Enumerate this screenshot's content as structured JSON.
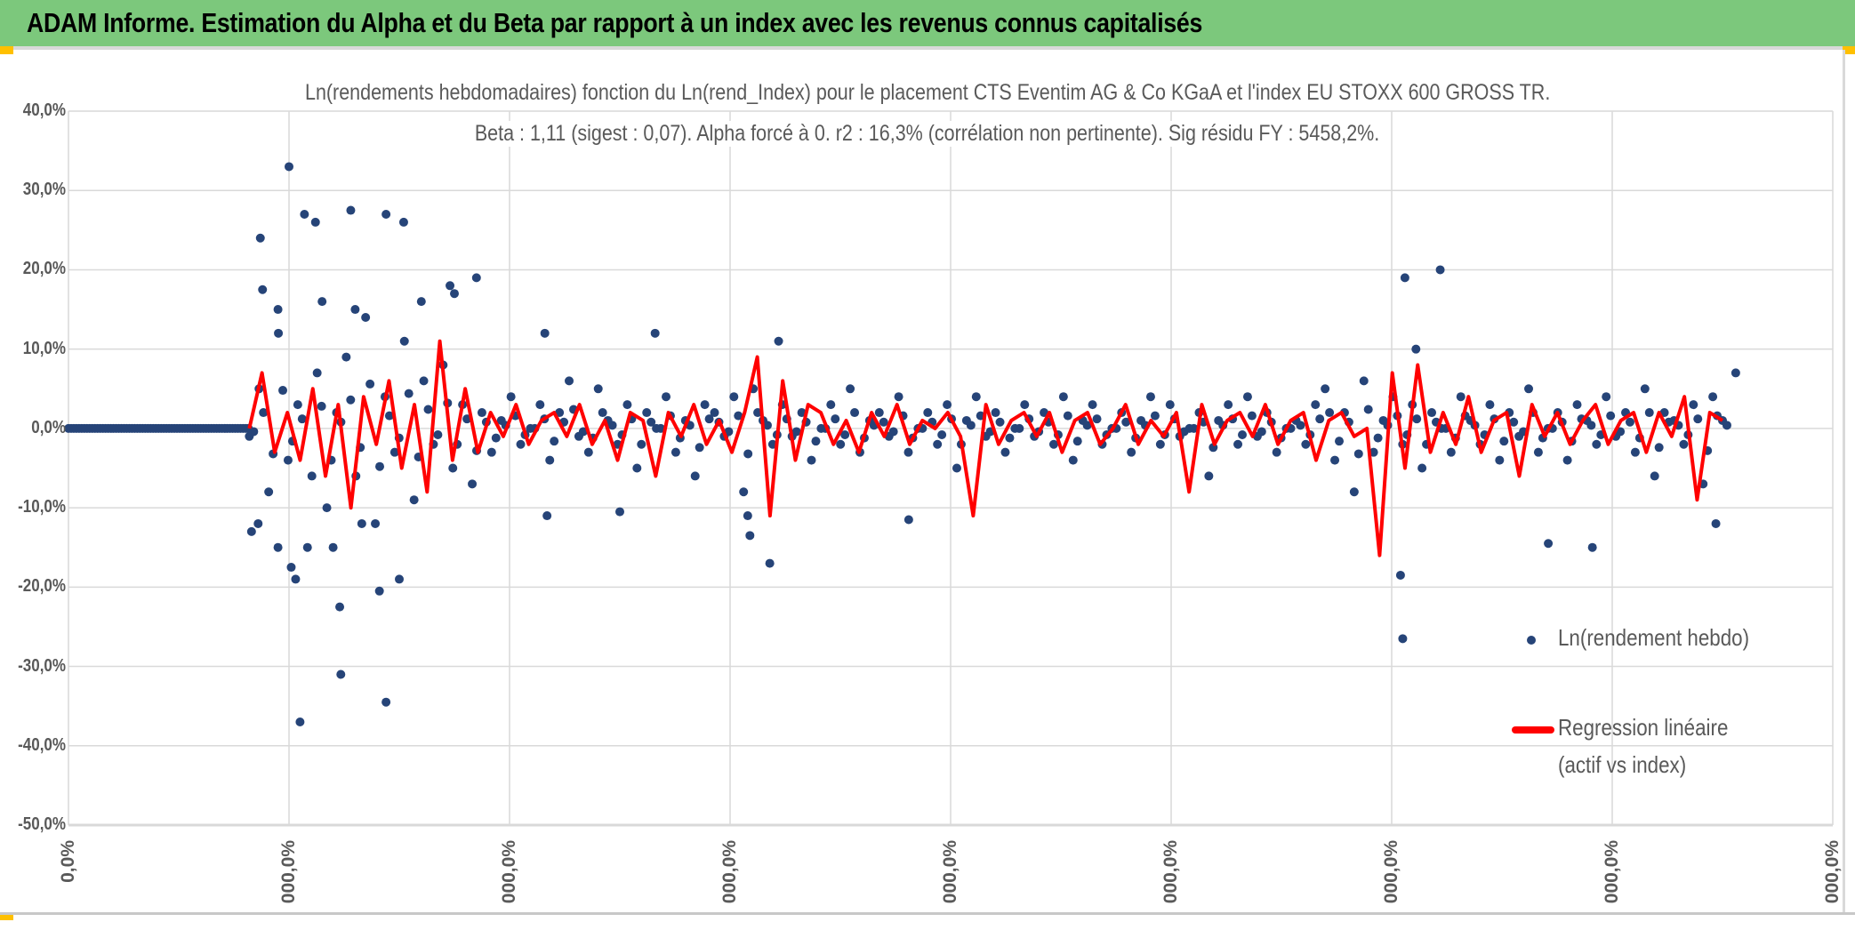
{
  "header": {
    "title": "ADAM Informe. Estimation du Alpha et du Beta par rapport à un index avec les revenus connus capitalisés"
  },
  "chart_data": {
    "type": "scatter",
    "title": "Ln(rendements hebdomadaires) fonction du Ln(rend_Index) pour le placement CTS Eventim AG & Co KGaA et l'index EU STOXX 600 GROSS TR.",
    "subtitle": "Beta : 1,11 (sigest : 0,07). Alpha forcé à 0. r2 : 16,3% (corrélation non pertinente). Sig résidu FY : 5458,2%.",
    "ylim": [
      -50,
      40
    ],
    "yticks": [
      "40,0%",
      "30,0%",
      "20,0%",
      "10,0%",
      "0,0%",
      "-10,0%",
      "-20,0%",
      "-30,0%",
      "-40,0%",
      "-50,0%"
    ],
    "xlim": [
      0,
      8
    ],
    "xticks": [
      "0,0%",
      "000,0%",
      "000,0%",
      "000,0%",
      "000,0%",
      "000,0%",
      "000,0%",
      "000,0%",
      "000,0%"
    ],
    "grid": true,
    "legend_position": "right",
    "colors": {
      "scatter": "#264478",
      "regression": "#FF0000",
      "grid": "#d9d9d9"
    },
    "series": [
      {
        "name": "Ln(rendement hebdo)",
        "kind": "points",
        "zero_segment": [
          0,
          0.82
        ],
        "dense_x_range": [
          0.82,
          7.5
        ],
        "dense_y": [
          -1,
          5,
          -8,
          12,
          -4,
          3,
          -15,
          7,
          -10,
          2,
          9,
          -6,
          14,
          -12,
          4,
          -3,
          11,
          -9,
          6,
          -2,
          8,
          -5,
          3,
          -7,
          2,
          -3,
          1,
          4,
          -2,
          0,
          3,
          -4,
          2,
          6,
          -1,
          -3,
          5,
          1,
          -2,
          3,
          -5,
          2,
          0,
          4,
          -3,
          1,
          -6,
          3,
          2,
          -1,
          4,
          -8,
          5,
          1,
          -2,
          3,
          -1,
          2,
          -4,
          0,
          3,
          -2,
          5,
          -3,
          1,
          2,
          -1,
          4,
          -3,
          0,
          2,
          -2,
          3,
          -5,
          1,
          4,
          -1,
          2,
          -3,
          0,
          3,
          -1,
          2,
          -2,
          4,
          -4,
          1,
          3,
          -2,
          0,
          2,
          -3,
          1,
          4,
          -2,
          3,
          -1,
          0,
          2,
          -6,
          1,
          3,
          -2,
          4,
          -1,
          2,
          -3,
          0,
          1,
          -2,
          3,
          5,
          -4,
          2,
          -8,
          6,
          -3,
          1,
          4,
          -2,
          3,
          -5,
          2,
          0,
          -3,
          4,
          1,
          -2,
          3,
          -4,
          2,
          -1,
          5,
          -3,
          0,
          2,
          -4,
          3,
          1,
          -2,
          4,
          -1,
          2,
          -3,
          5,
          -6,
          2,
          1,
          -2,
          3,
          -7,
          4,
          1
        ],
        "outliers": [
          [
            1.0,
            33
          ],
          [
            1.07,
            27
          ],
          [
            1.12,
            26
          ],
          [
            1.28,
            27.5
          ],
          [
            1.44,
            27
          ],
          [
            1.52,
            26
          ],
          [
            0.87,
            24
          ],
          [
            0.88,
            17.5
          ],
          [
            0.95,
            15
          ],
          [
            1.85,
            19
          ],
          [
            1.73,
            18
          ],
          [
            1.75,
            17
          ],
          [
            6.06,
            19
          ],
          [
            6.22,
            20
          ],
          [
            1.05,
            -37
          ],
          [
            1.44,
            -34.5
          ],
          [
            1.235,
            -31
          ],
          [
            1.23,
            -22.5
          ],
          [
            1.41,
            -20.5
          ],
          [
            1.03,
            -19
          ],
          [
            1.01,
            -17.5
          ],
          [
            1.5,
            -19
          ],
          [
            0.83,
            -13
          ],
          [
            0.86,
            -12
          ],
          [
            6.05,
            -26.5
          ],
          [
            6.04,
            -18.5
          ],
          [
            6.71,
            -14.5
          ],
          [
            6.91,
            -15
          ],
          [
            7.47,
            -12
          ],
          [
            3.18,
            -17
          ],
          [
            3.09,
            -13.5
          ],
          [
            3.08,
            -11
          ],
          [
            2.17,
            -11
          ],
          [
            2.5,
            -10.5
          ],
          [
            3.81,
            -11.5
          ],
          [
            2.66,
            12
          ],
          [
            2.16,
            12
          ],
          [
            3.22,
            11
          ],
          [
            6.11,
            10
          ],
          [
            7.56,
            7
          ],
          [
            1.15,
            16
          ],
          [
            1.3,
            15
          ],
          [
            1.6,
            16
          ],
          [
            0.95,
            -15
          ],
          [
            1.2,
            -15
          ],
          [
            1.33,
            -12
          ]
        ]
      },
      {
        "name": "Regression linéaire (actif vs index)",
        "kind": "line",
        "x_range": [
          0.82,
          7.5
        ],
        "y": [
          0,
          7,
          -3,
          2,
          -4,
          5,
          -6,
          3,
          -10,
          4,
          -2,
          6,
          -5,
          3,
          -8,
          11,
          -4,
          5,
          -3,
          2,
          -1,
          3,
          -2,
          1,
          2,
          -1,
          3,
          -2,
          1,
          -4,
          2,
          1,
          -6,
          2,
          -1,
          3,
          -2,
          1,
          -3,
          2,
          9,
          -11,
          6,
          -4,
          3,
          2,
          -2,
          1,
          -3,
          2,
          -1,
          3,
          -2,
          1,
          0,
          2,
          -1,
          -11,
          3,
          -2,
          1,
          2,
          -1,
          2,
          -3,
          1,
          2,
          -2,
          0,
          3,
          -2,
          1,
          -1,
          2,
          -8,
          3,
          -2,
          1,
          2,
          -1,
          3,
          -2,
          1,
          2,
          -4,
          1,
          2,
          -1,
          0,
          -16,
          7,
          -5,
          8,
          -3,
          2,
          -2,
          4,
          -3,
          1,
          2,
          -6,
          3,
          -1,
          2,
          -2,
          1,
          3,
          -2,
          1,
          2,
          -3,
          2,
          -1,
          4,
          -9,
          2,
          1
        ]
      }
    ],
    "legend": {
      "scatter_label": "Ln(rendement hebdo)",
      "line_label_1": "Regression linéaire",
      "line_label_2": "(actif vs index)"
    }
  }
}
